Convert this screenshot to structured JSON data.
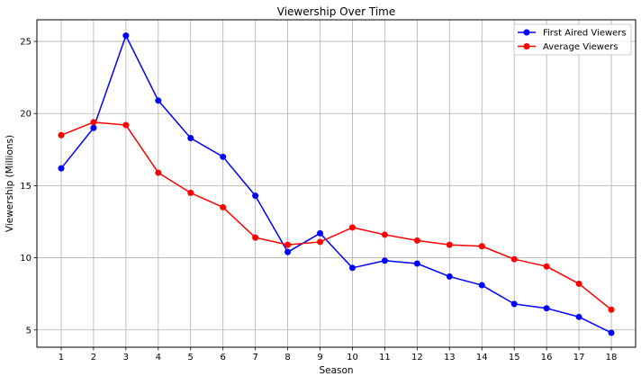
{
  "chart_data": {
    "type": "line",
    "title": "Viewership Over Time",
    "xlabel": "Season",
    "ylabel": "Viewership (Millions)",
    "x": [
      1,
      2,
      3,
      4,
      5,
      6,
      7,
      8,
      9,
      10,
      11,
      12,
      13,
      14,
      15,
      16,
      17,
      18
    ],
    "x_tick_labels": [
      "1",
      "2",
      "3",
      "4",
      "5",
      "6",
      "7",
      "8",
      "9",
      "10",
      "11",
      "12",
      "13",
      "14",
      "15",
      "16",
      "17",
      "18"
    ],
    "xlim": [
      0.25,
      18.75
    ],
    "ylim": [
      3.8,
      26.5
    ],
    "y_ticks": [
      5,
      10,
      15,
      20,
      25
    ],
    "y_tick_labels": [
      "5",
      "10",
      "15",
      "20",
      "25"
    ],
    "grid": true,
    "legend_position": "top-right",
    "series": [
      {
        "name": "First Aired Viewers",
        "color": "#0000ff",
        "marker": "circle",
        "values": [
          16.2,
          19.0,
          25.4,
          20.9,
          18.3,
          17.0,
          14.3,
          10.4,
          11.7,
          9.3,
          9.8,
          9.6,
          8.7,
          8.1,
          6.8,
          6.5,
          5.9,
          4.8
        ]
      },
      {
        "name": "Average Viewers",
        "color": "#ff0000",
        "marker": "circle",
        "values": [
          18.5,
          19.4,
          19.2,
          15.9,
          14.5,
          13.5,
          11.4,
          10.9,
          11.1,
          12.1,
          11.6,
          11.2,
          10.9,
          10.8,
          9.9,
          9.4,
          8.2,
          6.4
        ]
      }
    ]
  }
}
